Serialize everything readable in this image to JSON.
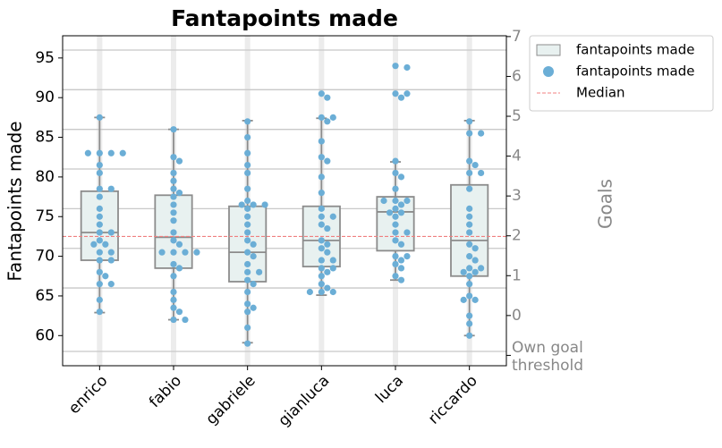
{
  "chart_data": {
    "type": "box",
    "title": "Fantapoints made",
    "ylabel": "Fantapoints made",
    "y2label": "Goals",
    "categories": [
      "enrico",
      "fabio",
      "gabriele",
      "gianluca",
      "luca",
      "riccardo"
    ],
    "ylim": [
      56.2,
      97.8
    ],
    "yticks": [
      60,
      65,
      70,
      75,
      80,
      85,
      90,
      95
    ],
    "y2lim": [
      -1.26,
      7.02
    ],
    "y2ticks": [
      {
        "value": -1,
        "label": "Own goal threshold"
      },
      0,
      1,
      2,
      3,
      4,
      5,
      6,
      7
    ],
    "grid_lines": [
      58,
      66,
      71,
      76,
      81,
      86,
      91,
      96
    ],
    "legend": "outside upper right",
    "series": [
      {
        "name": "fantapoints made",
        "kind": "box",
        "color": "#e8f1f0",
        "edge": "#8c8c8c",
        "boxes": [
          {
            "whislo": 62.9,
            "q1": 69.5,
            "med": 73.0,
            "q3": 78.2,
            "whishi": 87.5
          },
          {
            "whislo": 62.0,
            "q1": 68.5,
            "med": 72.4,
            "q3": 77.7,
            "whishi": 86.0
          },
          {
            "whislo": 59.1,
            "q1": 66.8,
            "med": 70.5,
            "q3": 76.3,
            "whishi": 87.1
          },
          {
            "whislo": 65.1,
            "q1": 68.7,
            "med": 72.0,
            "q3": 76.3,
            "whishi": 87.4
          },
          {
            "whislo": 67.0,
            "q1": 70.7,
            "med": 75.6,
            "q3": 77.5,
            "whishi": 81.9
          },
          {
            "whislo": 60.0,
            "q1": 67.5,
            "med": 72.0,
            "q3": 79.0,
            "whishi": 87.1
          }
        ]
      },
      {
        "name": "fantapoints made",
        "kind": "swarm",
        "color": "#6baed6",
        "values": [
          [
            87.5,
            83,
            83,
            83,
            83,
            81.5,
            80.5,
            78.5,
            78.5,
            77.5,
            76,
            75,
            74,
            73,
            73,
            72,
            71.5,
            71.5,
            70.5,
            70.5,
            69.5,
            69.5,
            68,
            67.5,
            66.5,
            66.5,
            64.5,
            63
          ],
          [
            86,
            82.5,
            82,
            80.5,
            79.5,
            78.5,
            78,
            77.5,
            76.5,
            75.5,
            74.5,
            73,
            72,
            71.5,
            70.5,
            70.5,
            70.5,
            70.5,
            69,
            68.5,
            67.5,
            65.5,
            64.5,
            63.5,
            63,
            62,
            62
          ],
          [
            87,
            85,
            83,
            81.5,
            80.5,
            78.5,
            77,
            76.5,
            76.5,
            76.5,
            76,
            75,
            74,
            73,
            72,
            71.5,
            70.5,
            70,
            69,
            68,
            68,
            67,
            66.5,
            65.5,
            64,
            63.5,
            63,
            61,
            59
          ],
          [
            90.5,
            90,
            87.5,
            87.5,
            87,
            84.5,
            82.5,
            82,
            80,
            78,
            76,
            75,
            75,
            74,
            73.5,
            72,
            71.5,
            71,
            70.5,
            69.5,
            69.5,
            68.5,
            68.5,
            68,
            67.5,
            66.5,
            66,
            65.5,
            65.5,
            65.5
          ],
          [
            94,
            93.8,
            90.5,
            90.5,
            90,
            82,
            80.5,
            80,
            78.5,
            77,
            77,
            77,
            76.5,
            76,
            75.5,
            75.5,
            75,
            74,
            73,
            73,
            72,
            71.5,
            70,
            70,
            69.5,
            69,
            68.5,
            67.5,
            67
          ],
          [
            87,
            85.5,
            85.5,
            82,
            81.5,
            80.5,
            80.5,
            78.5,
            76,
            75,
            74,
            73,
            71.5,
            71,
            70,
            69.5,
            68.5,
            68.5,
            68,
            68,
            67.5,
            66.5,
            65,
            64.5,
            64.5,
            62.5,
            61.5,
            60
          ]
        ]
      },
      {
        "name": "Median",
        "kind": "hline",
        "color": "#f08080",
        "value": 72.5
      }
    ]
  }
}
